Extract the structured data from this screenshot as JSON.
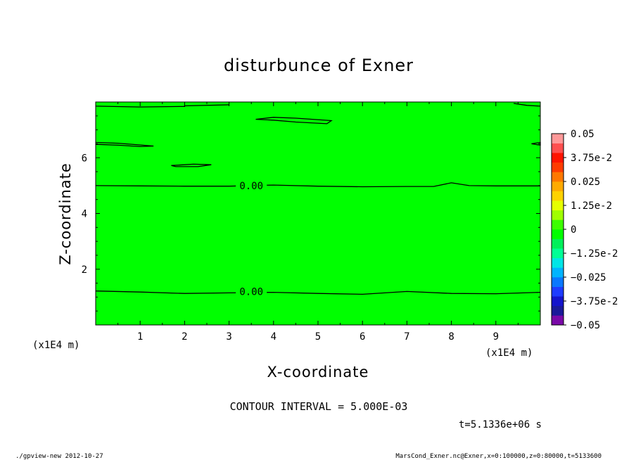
{
  "chart_data": {
    "type": "contour",
    "title": "disturbunce of Exner",
    "xlabel": "X-coordinate",
    "ylabel": "Z-coordinate",
    "x_units": "(x1E4 m)",
    "y_units": "(x1E4 m)",
    "xlim": [
      0,
      10
    ],
    "ylim": [
      0,
      8
    ],
    "x_ticks": [
      "1",
      "2",
      "3",
      "4",
      "5",
      "6",
      "7",
      "8",
      "9"
    ],
    "x_tick_values": [
      1,
      2,
      3,
      4,
      5,
      6,
      7,
      8,
      9
    ],
    "y_ticks": [
      "2",
      "4",
      "6"
    ],
    "y_tick_values": [
      2,
      4,
      6
    ],
    "contour_interval_text": "CONTOUR INTERVAL = 5.000E-03",
    "contour_labels": [
      {
        "text": "0.00",
        "x": 3.5,
        "z": 5.0
      },
      {
        "text": "0.00",
        "x": 3.5,
        "z": 1.2
      }
    ],
    "contours": [
      {
        "name": "upper-zero-line",
        "points": [
          [
            0,
            5.0
          ],
          [
            1,
            4.99
          ],
          [
            2,
            4.98
          ],
          [
            3,
            4.98
          ],
          [
            4,
            5.02
          ],
          [
            5,
            4.98
          ],
          [
            6,
            4.96
          ],
          [
            7,
            4.97
          ],
          [
            7.6,
            4.97
          ],
          [
            8,
            5.1
          ],
          [
            8.4,
            5.0
          ],
          [
            9,
            4.99
          ],
          [
            10,
            4.99
          ]
        ]
      },
      {
        "name": "lower-zero-line",
        "points": [
          [
            0,
            1.22
          ],
          [
            1,
            1.18
          ],
          [
            2,
            1.13
          ],
          [
            3,
            1.15
          ],
          [
            4,
            1.17
          ],
          [
            5,
            1.13
          ],
          [
            6,
            1.1
          ],
          [
            7,
            1.2
          ],
          [
            8,
            1.13
          ],
          [
            9,
            1.12
          ],
          [
            10,
            1.17
          ]
        ]
      },
      {
        "name": "top-edge-line",
        "points": [
          [
            0,
            7.85
          ],
          [
            1,
            7.82
          ],
          [
            2,
            7.84
          ],
          [
            2,
            7.86
          ],
          [
            3,
            7.9
          ]
        ]
      },
      {
        "name": "top-right-line",
        "points": [
          [
            9.4,
            7.95
          ],
          [
            9.7,
            7.88
          ],
          [
            10,
            7.85
          ]
        ]
      },
      {
        "name": "blob-top",
        "points": [
          [
            3.6,
            7.38
          ],
          [
            4,
            7.45
          ],
          [
            4.5,
            7.42
          ],
          [
            5.3,
            7.33
          ],
          [
            5.2,
            7.22
          ],
          [
            4.5,
            7.28
          ],
          [
            4,
            7.35
          ],
          [
            3.6,
            7.38
          ]
        ]
      },
      {
        "name": "blob-left",
        "points": [
          [
            0,
            6.55
          ],
          [
            0.5,
            6.52
          ],
          [
            1.3,
            6.42
          ],
          [
            1,
            6.4
          ],
          [
            0.5,
            6.45
          ],
          [
            0,
            6.48
          ]
        ]
      },
      {
        "name": "blob-mid",
        "points": [
          [
            1.7,
            5.72
          ],
          [
            2.2,
            5.77
          ],
          [
            2.6,
            5.75
          ],
          [
            2.3,
            5.68
          ],
          [
            1.8,
            5.68
          ],
          [
            1.7,
            5.72
          ]
        ]
      },
      {
        "name": "blob-right",
        "points": [
          [
            9.8,
            6.5
          ],
          [
            10,
            6.55
          ],
          [
            10,
            6.45
          ],
          [
            9.8,
            6.5
          ]
        ]
      }
    ],
    "field_fill_color": "#00ff00",
    "colorbar": {
      "labels": [
        "0.05",
        "3.75e-2",
        "0.025",
        "1.25e-2",
        "0",
        "−1.25e-2",
        "−0.025",
        "−3.75e-2",
        "−0.05"
      ],
      "label_values": [
        0.05,
        0.0375,
        0.025,
        0.0125,
        0,
        -0.0125,
        -0.025,
        -0.0375,
        -0.05
      ],
      "levels": [
        -0.05,
        0.05
      ],
      "colors": [
        "#7a0aa8",
        "#1a1a99",
        "#1414cc",
        "#1e3cff",
        "#0a78ff",
        "#00b4ff",
        "#00e6e6",
        "#00ff96",
        "#00f05a",
        "#00ff00",
        "#3cff00",
        "#a0ff00",
        "#e6ff00",
        "#ffd200",
        "#ffaa00",
        "#ff7800",
        "#ff3c00",
        "#ff1400",
        "#ff5050",
        "#ff9999"
      ]
    },
    "time_text": "t=5.1336e+06 s"
  },
  "footer": {
    "left": "./gpview-new  2012-10-27",
    "right": "MarsCond_Exner.nc@Exner,x=0:100000,z=0:80000,t=5133600"
  }
}
